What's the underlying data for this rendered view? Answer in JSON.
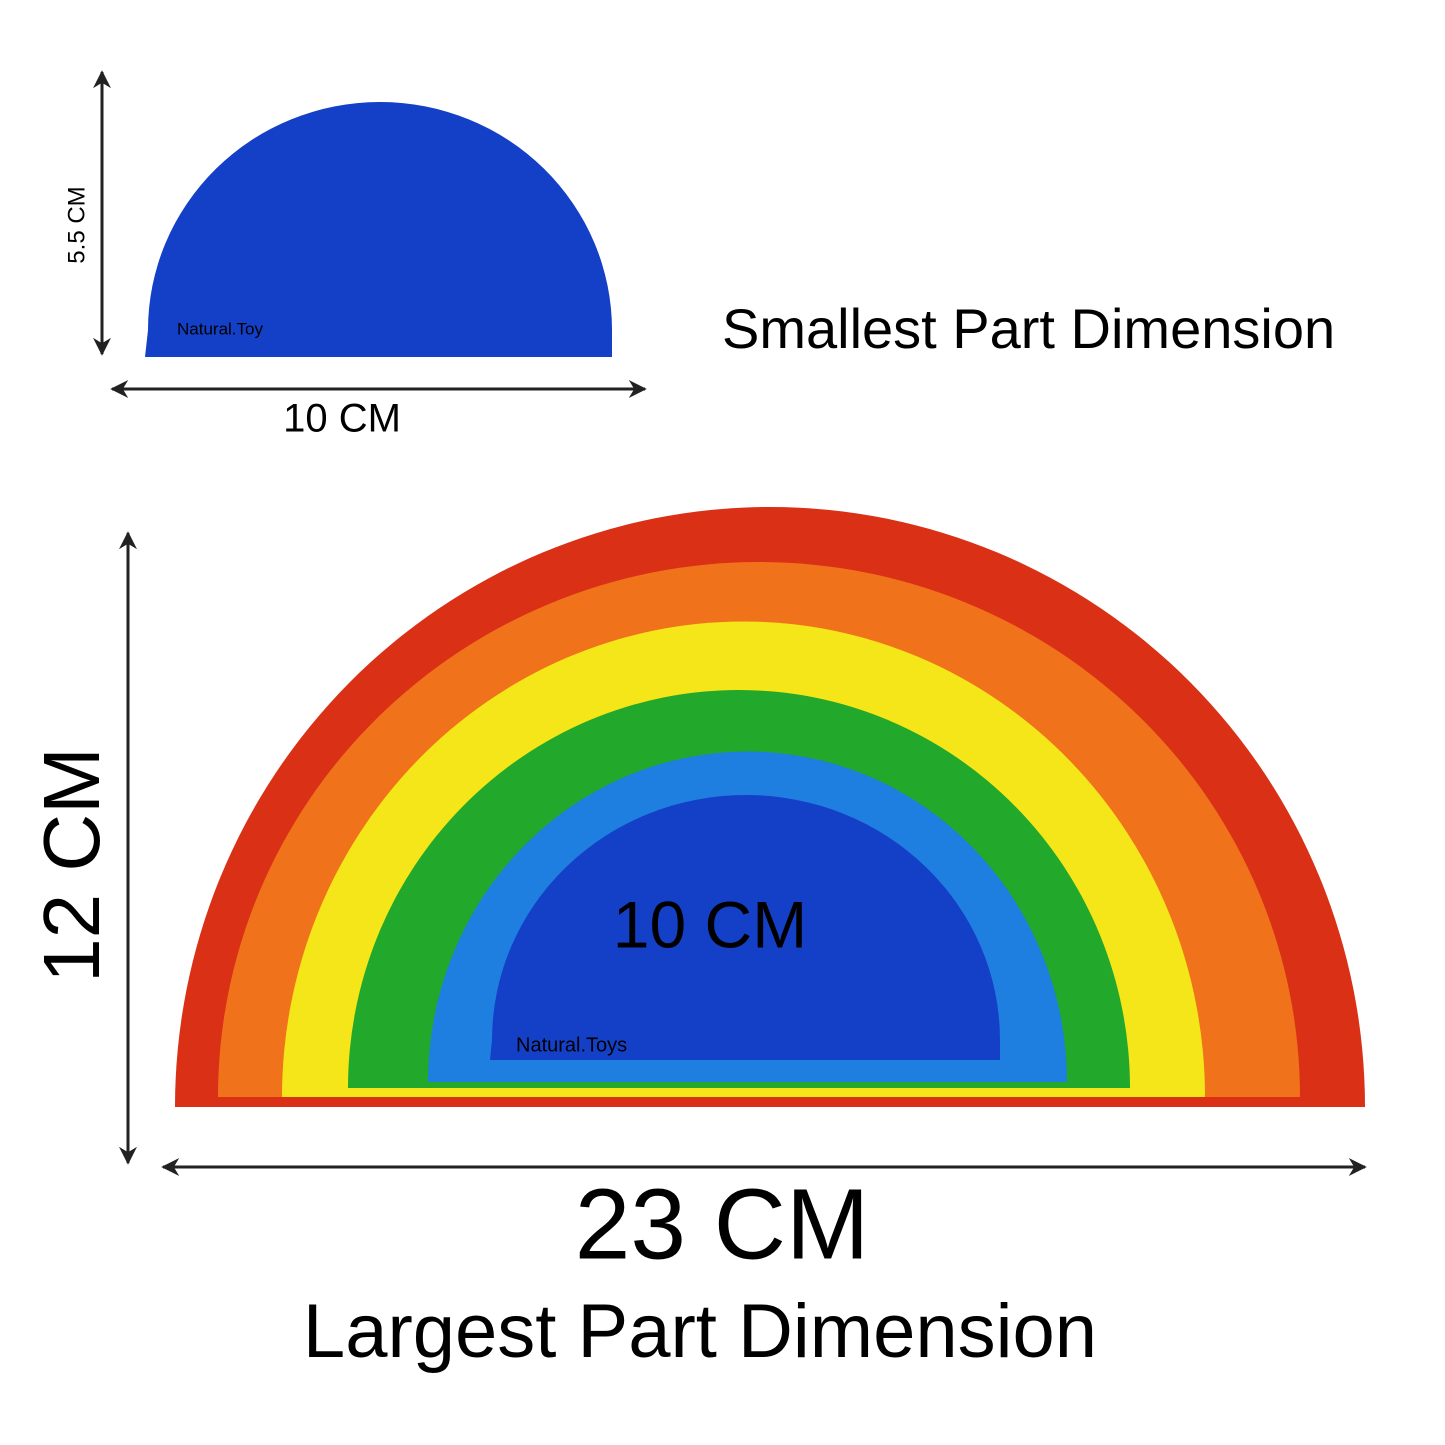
{
  "small_part": {
    "height": "5.5 CM",
    "width": "10 CM",
    "watermark": "Natural.Toy",
    "caption": "Smallest Part Dimension"
  },
  "large_part": {
    "height": "12 CM",
    "width": "23 CM",
    "inner_label": "10 CM",
    "watermark": "Natural.Toys",
    "caption": "Largest Part Dimension"
  }
}
